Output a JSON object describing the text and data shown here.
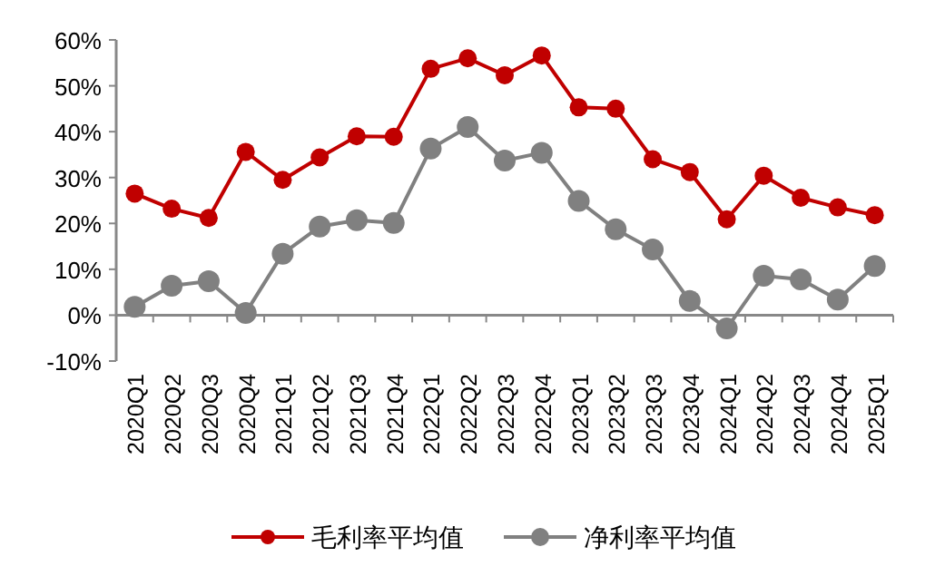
{
  "chart_data": {
    "type": "line",
    "categories": [
      "2020Q1",
      "2020Q2",
      "2020Q3",
      "2020Q4",
      "2021Q1",
      "2021Q2",
      "2021Q3",
      "2021Q4",
      "2022Q1",
      "2022Q2",
      "2022Q3",
      "2022Q4",
      "2023Q1",
      "2023Q2",
      "2023Q3",
      "2023Q4",
      "2024Q1",
      "2024Q2",
      "2024Q3",
      "2024Q4",
      "2025Q1"
    ],
    "series": [
      {
        "name": "毛利率平均值",
        "color": "#c00000",
        "values": [
          26.5,
          23.2,
          21.2,
          35.6,
          29.5,
          34.4,
          39.0,
          38.9,
          53.7,
          56.0,
          52.3,
          56.6,
          45.3,
          45.0,
          34.0,
          31.2,
          20.9,
          30.4,
          25.6,
          23.5,
          21.8
        ]
      },
      {
        "name": "净利率平均值",
        "color": "#808080",
        "values": [
          1.8,
          6.4,
          7.4,
          0.5,
          13.4,
          19.3,
          20.7,
          20.1,
          36.3,
          41.0,
          33.7,
          35.4,
          24.9,
          18.7,
          14.3,
          3.1,
          -2.9,
          8.6,
          7.8,
          3.4,
          10.7
        ]
      }
    ],
    "ylim": [
      -10,
      60
    ],
    "yticks": [
      {
        "value": -10,
        "label": "-10%"
      },
      {
        "value": 0,
        "label": "0%"
      },
      {
        "value": 10,
        "label": "10%"
      },
      {
        "value": 20,
        "label": "20%"
      },
      {
        "value": 30,
        "label": "30%"
      },
      {
        "value": 40,
        "label": "40%"
      },
      {
        "value": 50,
        "label": "50%"
      },
      {
        "value": 60,
        "label": "60%"
      }
    ],
    "grid": false,
    "legend": "bottom",
    "marker": "circle",
    "line_style": "solid"
  }
}
